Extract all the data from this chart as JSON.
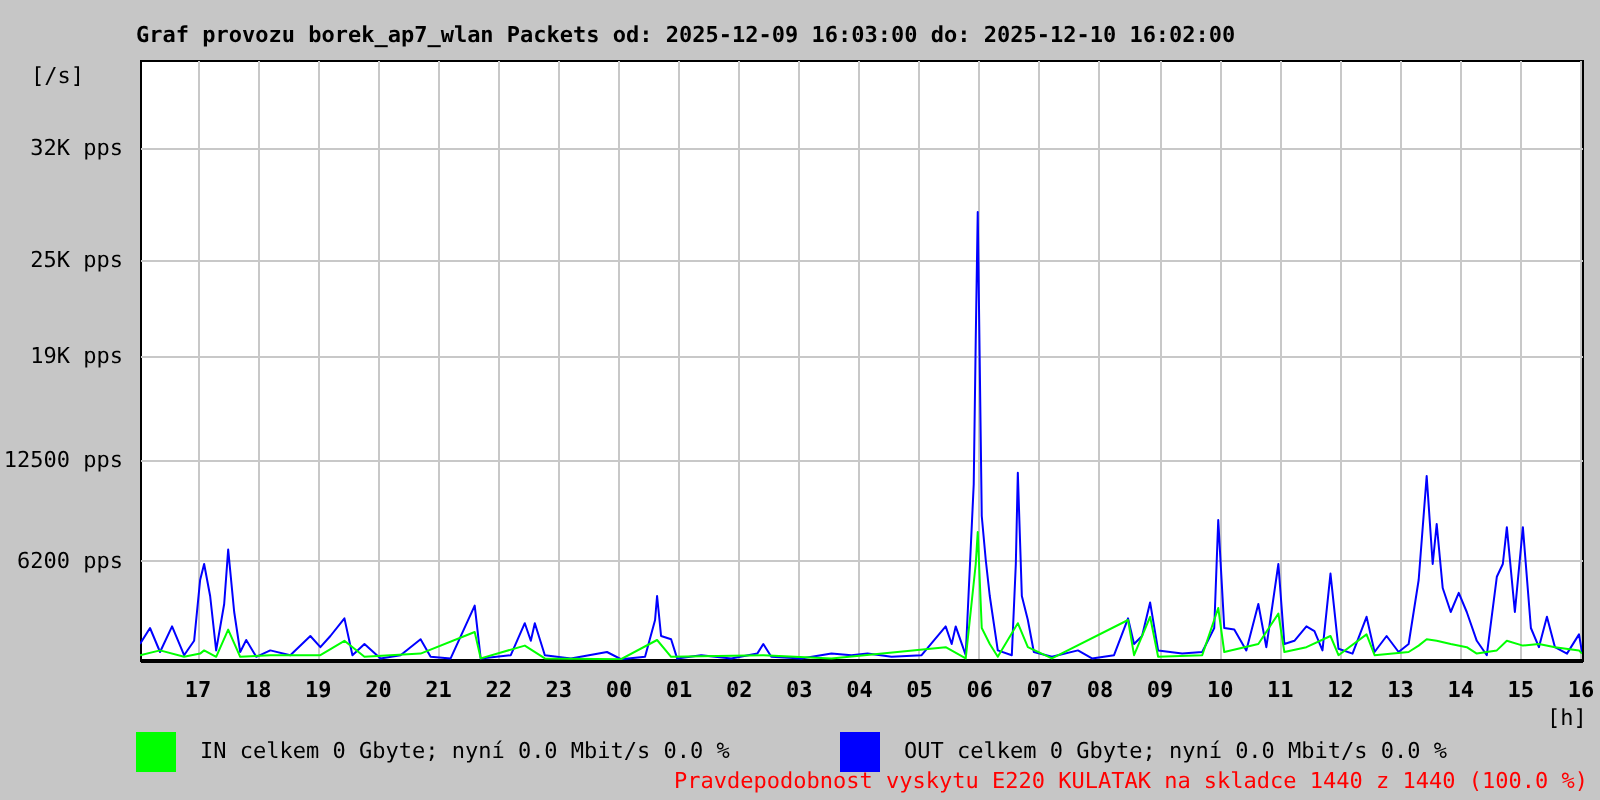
{
  "chart_data": {
    "type": "line",
    "title": "Graf provozu borek_ap7_wlan Packets od: 2025-12-09 16:03:00 do: 2025-12-10 16:02:00",
    "xlabel": "[h]",
    "ylabel": "[/s]",
    "xlim": [
      "2025-12-09T16:03",
      "2025-12-10T16:02"
    ],
    "ylim": [
      0,
      37500
    ],
    "xticks": [
      {
        "value": "2025-12-09T17:00",
        "label": "17"
      },
      {
        "value": "2025-12-09T18:00",
        "label": "18"
      },
      {
        "value": "2025-12-09T19:00",
        "label": "19"
      },
      {
        "value": "2025-12-09T20:00",
        "label": "20"
      },
      {
        "value": "2025-12-09T21:00",
        "label": "21"
      },
      {
        "value": "2025-12-09T22:00",
        "label": "22"
      },
      {
        "value": "2025-12-09T23:00",
        "label": "23"
      },
      {
        "value": "2025-12-10T00:00",
        "label": "00"
      },
      {
        "value": "2025-12-10T01:00",
        "label": "01"
      },
      {
        "value": "2025-12-10T02:00",
        "label": "02"
      },
      {
        "value": "2025-12-10T03:00",
        "label": "03"
      },
      {
        "value": "2025-12-10T04:00",
        "label": "04"
      },
      {
        "value": "2025-12-10T05:00",
        "label": "05"
      },
      {
        "value": "2025-12-10T06:00",
        "label": "06"
      },
      {
        "value": "2025-12-10T07:00",
        "label": "07"
      },
      {
        "value": "2025-12-10T08:00",
        "label": "08"
      },
      {
        "value": "2025-12-10T09:00",
        "label": "09"
      },
      {
        "value": "2025-12-10T10:00",
        "label": "10"
      },
      {
        "value": "2025-12-10T11:00",
        "label": "11"
      },
      {
        "value": "2025-12-10T12:00",
        "label": "12"
      },
      {
        "value": "2025-12-10T13:00",
        "label": "13"
      },
      {
        "value": "2025-12-10T14:00",
        "label": "14"
      },
      {
        "value": "2025-12-10T15:00",
        "label": "15"
      },
      {
        "value": "2025-12-10T16:00",
        "label": "16"
      }
    ],
    "yticks": [
      {
        "value": 6200,
        "label": "6200 pps"
      },
      {
        "value": 12500,
        "label": "12500 pps"
      },
      {
        "value": 19000,
        "label": "19K pps"
      },
      {
        "value": 25000,
        "label": "25K pps"
      },
      {
        "value": 32000,
        "label": "32K pps"
      }
    ],
    "grid": true,
    "legend": "bottom",
    "line_style": "solid",
    "marker": "none",
    "annotations": [
      "Pravdepodobnost vyskytu E220 KULATAK na skladce 1440 z 1440 (100.0 %)"
    ],
    "series": [
      {
        "name": "IN celkem 0 Gbyte; nyní 0.0 Mbit/s 0.0 %",
        "color": "#00ff00",
        "x": [
          "2025-12-09T16:03",
          "2025-12-09T16:23",
          "2025-12-09T16:47",
          "2025-12-09T17:03",
          "2025-12-09T17:07",
          "2025-12-09T17:19",
          "2025-12-09T17:31",
          "2025-12-09T17:43",
          "2025-12-09T18:13",
          "2025-12-09T19:03",
          "2025-12-09T19:27",
          "2025-12-09T19:47",
          "2025-12-09T20:43",
          "2025-12-09T21:37",
          "2025-12-09T21:43",
          "2025-12-09T22:27",
          "2025-12-09T22:47",
          "2025-12-10T00:03",
          "2025-12-10T00:39",
          "2025-12-10T00:53",
          "2025-12-10T02:25",
          "2025-12-10T03:33",
          "2025-12-10T05:27",
          "2025-12-10T05:47",
          "2025-12-10T05:57",
          "2025-12-10T05:59",
          "2025-12-10T06:03",
          "2025-12-10T06:11",
          "2025-12-10T06:19",
          "2025-12-10T06:39",
          "2025-12-10T06:49",
          "2025-12-10T07:13",
          "2025-12-10T08:29",
          "2025-12-10T08:35",
          "2025-12-10T08:51",
          "2025-12-10T08:59",
          "2025-12-10T09:43",
          "2025-12-10T09:59",
          "2025-12-10T10:05",
          "2025-12-10T10:39",
          "2025-12-10T10:59",
          "2025-12-10T11:05",
          "2025-12-10T11:27",
          "2025-12-10T11:51",
          "2025-12-10T11:59",
          "2025-12-10T12:27",
          "2025-12-10T12:35",
          "2025-12-10T13:09",
          "2025-12-10T13:19",
          "2025-12-10T13:27",
          "2025-12-10T13:37",
          "2025-12-10T13:51",
          "2025-12-10T14:07",
          "2025-12-10T14:17",
          "2025-12-10T14:37",
          "2025-12-10T14:47",
          "2025-12-10T15:03",
          "2025-12-10T15:19",
          "2025-12-10T15:35",
          "2025-12-10T15:59",
          "2025-12-10T16:02"
        ],
        "values": [
          300,
          600,
          200,
          400,
          600,
          200,
          1900,
          200,
          300,
          300,
          1200,
          200,
          400,
          1750,
          100,
          900,
          100,
          50,
          1250,
          200,
          300,
          100,
          800,
          100,
          6000,
          8000,
          2000,
          1000,
          200,
          2300,
          800,
          100,
          2500,
          300,
          2700,
          200,
          300,
          3250,
          500,
          1000,
          2900,
          500,
          800,
          1500,
          300,
          1600,
          300,
          500,
          900,
          1300,
          1200,
          1000,
          800,
          400,
          600,
          1200,
          900,
          1000,
          800,
          600,
          400
        ]
      },
      {
        "name": "OUT celkem 0 Gbyte; nyní 0.0 Mbit/s 0.0 %",
        "color": "#0000ff",
        "x": [
          "2025-12-09T16:03",
          "2025-12-09T16:13",
          "2025-12-09T16:23",
          "2025-12-09T16:35",
          "2025-12-09T16:47",
          "2025-12-09T16:57",
          "2025-12-09T17:03",
          "2025-12-09T17:07",
          "2025-12-09T17:13",
          "2025-12-09T17:19",
          "2025-12-09T17:27",
          "2025-12-09T17:31",
          "2025-12-09T17:37",
          "2025-12-09T17:43",
          "2025-12-09T17:49",
          "2025-12-09T17:59",
          "2025-12-09T18:13",
          "2025-12-09T18:33",
          "2025-12-09T18:53",
          "2025-12-09T19:03",
          "2025-12-09T19:13",
          "2025-12-09T19:27",
          "2025-12-09T19:35",
          "2025-12-09T19:47",
          "2025-12-09T20:03",
          "2025-12-09T20:23",
          "2025-12-09T20:43",
          "2025-12-09T20:53",
          "2025-12-09T21:13",
          "2025-12-09T21:37",
          "2025-12-09T21:43",
          "2025-12-09T22:13",
          "2025-12-09T22:27",
          "2025-12-09T22:33",
          "2025-12-09T22:37",
          "2025-12-09T22:47",
          "2025-12-09T23:13",
          "2025-12-09T23:49",
          "2025-12-10T00:03",
          "2025-12-10T00:27",
          "2025-12-10T00:37",
          "2025-12-10T00:39",
          "2025-12-10T00:43",
          "2025-12-10T00:53",
          "2025-12-10T00:59",
          "2025-12-10T01:23",
          "2025-12-10T01:53",
          "2025-12-10T02:19",
          "2025-12-10T02:25",
          "2025-12-10T02:33",
          "2025-12-10T03:03",
          "2025-12-10T03:33",
          "2025-12-10T03:53",
          "2025-12-10T04:09",
          "2025-12-10T04:33",
          "2025-12-10T05:03",
          "2025-12-10T05:27",
          "2025-12-10T05:33",
          "2025-12-10T05:37",
          "2025-12-10T05:47",
          "2025-12-10T05:55",
          "2025-12-10T05:57",
          "2025-12-10T05:59",
          "2025-12-10T06:03",
          "2025-12-10T06:07",
          "2025-12-10T06:11",
          "2025-12-10T06:19",
          "2025-12-10T06:33",
          "2025-12-10T06:37",
          "2025-12-10T06:39",
          "2025-12-10T06:43",
          "2025-12-10T06:49",
          "2025-12-10T06:55",
          "2025-12-10T07:13",
          "2025-12-10T07:39",
          "2025-12-10T07:53",
          "2025-12-10T08:15",
          "2025-12-10T08:29",
          "2025-12-10T08:35",
          "2025-12-10T08:43",
          "2025-12-10T08:51",
          "2025-12-10T08:59",
          "2025-12-10T09:23",
          "2025-12-10T09:43",
          "2025-12-10T09:55",
          "2025-12-10T09:59",
          "2025-12-10T10:05",
          "2025-12-10T10:15",
          "2025-12-10T10:27",
          "2025-12-10T10:39",
          "2025-12-10T10:47",
          "2025-12-10T10:59",
          "2025-12-10T11:05",
          "2025-12-10T11:15",
          "2025-12-10T11:27",
          "2025-12-10T11:35",
          "2025-12-10T11:43",
          "2025-12-10T11:51",
          "2025-12-10T11:59",
          "2025-12-10T12:13",
          "2025-12-10T12:27",
          "2025-12-10T12:35",
          "2025-12-10T12:47",
          "2025-12-10T12:59",
          "2025-12-10T13:09",
          "2025-12-10T13:19",
          "2025-12-10T13:27",
          "2025-12-10T13:33",
          "2025-12-10T13:37",
          "2025-12-10T13:43",
          "2025-12-10T13:51",
          "2025-12-10T13:59",
          "2025-12-10T14:07",
          "2025-12-10T14:17",
          "2025-12-10T14:27",
          "2025-12-10T14:37",
          "2025-12-10T14:43",
          "2025-12-10T14:47",
          "2025-12-10T14:55",
          "2025-12-10T15:03",
          "2025-12-10T15:11",
          "2025-12-10T15:19",
          "2025-12-10T15:27",
          "2025-12-10T15:35",
          "2025-12-10T15:47",
          "2025-12-10T15:59",
          "2025-12-10T16:02"
        ],
        "values": [
          1000,
          2000,
          500,
          2100,
          300,
          1200,
          5000,
          6000,
          4000,
          600,
          3500,
          6900,
          3000,
          500,
          1250,
          200,
          600,
          300,
          1500,
          800,
          1500,
          2600,
          300,
          1000,
          100,
          300,
          1300,
          200,
          100,
          3400,
          100,
          300,
          2300,
          1200,
          2300,
          300,
          100,
          500,
          50,
          200,
          2500,
          4000,
          1500,
          1300,
          100,
          300,
          100,
          400,
          1000,
          200,
          100,
          400,
          300,
          400,
          200,
          300,
          2100,
          1000,
          2100,
          300,
          11000,
          20000,
          28000,
          9000,
          6250,
          4000,
          600,
          300,
          6000,
          11700,
          4000,
          2500,
          500,
          200,
          600,
          100,
          300,
          2600,
          1000,
          1500,
          3600,
          600,
          400,
          500,
          2000,
          8750,
          2000,
          1900,
          600,
          3500,
          800,
          6000,
          1000,
          1200,
          2100,
          1800,
          600,
          5400,
          700,
          400,
          2700,
          500,
          1500,
          500,
          1000,
          5000,
          11500,
          6000,
          8500,
          4500,
          3000,
          4200,
          3000,
          1200,
          300,
          5200,
          6000,
          8300,
          3000,
          8300,
          2000,
          800,
          2700,
          800,
          400,
          1600,
          500
        ]
      }
    ]
  }
}
